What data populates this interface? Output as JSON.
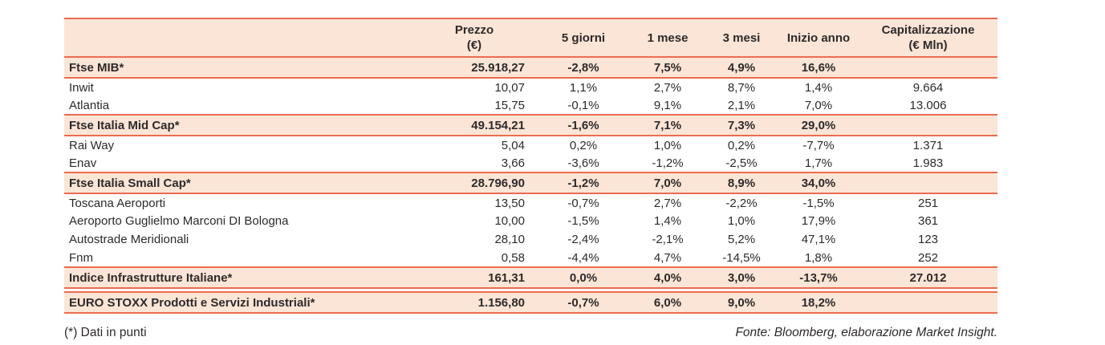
{
  "colors": {
    "accent": "#EC6B51",
    "bandBg": "#FBE5D6",
    "text": "#2E2A2A"
  },
  "table": {
    "headers": {
      "name": "",
      "prezzo": "Prezzo\n(€)",
      "d5": "5 giorni",
      "m1": "1 mese",
      "m3": "3 mesi",
      "ytd": "Inizio anno",
      "cap": "Capitalizzazione\n(€ Mln)"
    },
    "rows": [
      {
        "type": "index",
        "name": "Ftse MIB*",
        "prezzo": "25.918,27",
        "d5": "-2,8%",
        "m1": "7,5%",
        "m3": "4,9%",
        "ytd": "16,6%",
        "cap": ""
      },
      {
        "type": "stock",
        "name": "Inwit",
        "prezzo": "10,07",
        "d5": "1,1%",
        "m1": "2,7%",
        "m3": "8,7%",
        "ytd": "1,4%",
        "cap": "9.664"
      },
      {
        "type": "stock",
        "name": "Atlantia",
        "prezzo": "15,75",
        "d5": "-0,1%",
        "m1": "9,1%",
        "m3": "2,1%",
        "ytd": "7,0%",
        "cap": "13.006"
      },
      {
        "type": "index",
        "name": "Ftse Italia Mid Cap*",
        "prezzo": "49.154,21",
        "d5": "-1,6%",
        "m1": "7,1%",
        "m3": "7,3%",
        "ytd": "29,0%",
        "cap": ""
      },
      {
        "type": "stock",
        "name": "Rai Way",
        "prezzo": "5,04",
        "d5": "0,2%",
        "m1": "1,0%",
        "m3": "0,2%",
        "ytd": "-7,7%",
        "cap": "1.371"
      },
      {
        "type": "stock",
        "name": "Enav",
        "prezzo": "3,66",
        "d5": "-3,6%",
        "m1": "-1,2%",
        "m3": "-2,5%",
        "ytd": "1,7%",
        "cap": "1.983"
      },
      {
        "type": "index",
        "name": "Ftse Italia Small Cap*",
        "prezzo": "28.796,90",
        "d5": "-1,2%",
        "m1": "7,0%",
        "m3": "8,9%",
        "ytd": "34,0%",
        "cap": ""
      },
      {
        "type": "stock",
        "name": "Toscana Aeroporti",
        "prezzo": "13,50",
        "d5": "-0,7%",
        "m1": "2,7%",
        "m3": "-2,2%",
        "ytd": "-1,5%",
        "cap": "251"
      },
      {
        "type": "stock",
        "name": "Aeroporto Guglielmo Marconi DI Bologna",
        "prezzo": "10,00",
        "d5": "-1,5%",
        "m1": "1,4%",
        "m3": "1,0%",
        "ytd": "17,9%",
        "cap": "361"
      },
      {
        "type": "stock",
        "name": "Autostrade Meridionali",
        "prezzo": "28,10",
        "d5": "-2,4%",
        "m1": "-2,1%",
        "m3": "5,2%",
        "ytd": "47,1%",
        "cap": "123"
      },
      {
        "type": "stock",
        "name": "Fnm",
        "prezzo": "0,58",
        "d5": "-4,4%",
        "m1": "4,7%",
        "m3": "-14,5%",
        "ytd": "1,8%",
        "cap": "252"
      },
      {
        "type": "index",
        "name": "Indice Infrastrutture Italiane*",
        "prezzo": "161,31",
        "d5": "0,0%",
        "m1": "4,0%",
        "m3": "3,0%",
        "ytd": "-13,7%",
        "cap": "27.012"
      },
      {
        "type": "spacer"
      },
      {
        "type": "index",
        "name": "EURO STOXX Prodotti e Servizi Industriali*",
        "prezzo": "1.156,80",
        "d5": "-0,7%",
        "m1": "6,0%",
        "m3": "9,0%",
        "ytd": "18,2%",
        "cap": ""
      }
    ]
  },
  "footer": {
    "note": "(*) Dati in punti",
    "source": "Fonte: Bloomberg, elaborazione Market Insight."
  }
}
